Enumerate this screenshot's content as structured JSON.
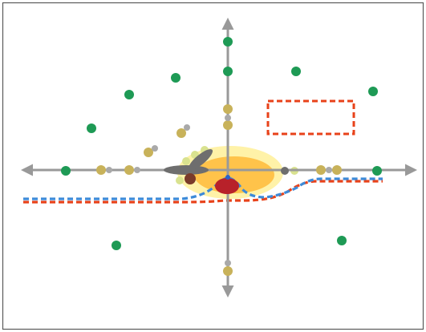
{
  "colors": {
    "frame": "#5a5a5a",
    "axis": "#999999",
    "green_dot": "#1e9a55",
    "olive_dot": "#c8b25a",
    "grey_dot": "#a9a9a9",
    "pale_dot": "#d9e28f",
    "red_dash": "#e8421a",
    "blue_dash": "#3d8ad8",
    "halo_outer": "#fff2a8",
    "halo_inner": "#ffc34a",
    "core_red": "#b8212a",
    "core_blue": "#2b62c9",
    "dark_grey": "#6e6e6e",
    "dark_brown": "#7a3b2a"
  },
  "icons": {
    "axis_arrow_left": "arrow-left-icon",
    "axis_arrow_right": "arrow-right-icon",
    "axis_arrow_up": "arrow-up-icon",
    "axis_arrow_down": "arrow-down-icon"
  }
}
